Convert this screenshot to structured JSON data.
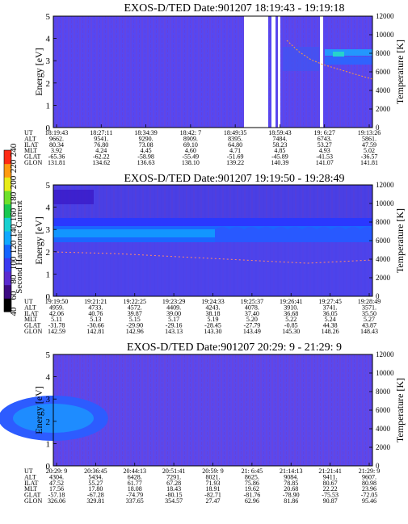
{
  "colorbar": {
    "label": "Second Harmonic Current",
    "ticks": [
      "40",
      "60",
      "80",
      "100",
      "120",
      "140",
      "160",
      "180",
      "200",
      "220",
      "240"
    ],
    "colors": [
      "#000000",
      "#3c0a82",
      "#5a2acf",
      "#3a3af0",
      "#1464ff",
      "#10a8ff",
      "#18d0d0",
      "#19c850",
      "#6ee02a",
      "#e8ec18",
      "#ff9a10",
      "#ff2a14"
    ]
  },
  "panels": [
    {
      "title": "EXOS-D/TED   Date:901207  18:19:43 - 19:19:18",
      "ylabel": "Energy [eV]",
      "y2label": "Temperature [K]",
      "yticks": [
        "0",
        "1",
        "2",
        "3",
        "4",
        "5"
      ],
      "y2ticks": [
        "0",
        "2000",
        "4000",
        "6000",
        "8000",
        "10000",
        "12000"
      ],
      "rowlabels": [
        "UT",
        "ALT",
        "ILAT",
        "MLT",
        "GLAT",
        "GLON"
      ],
      "columns": [
        [
          "18:19:43",
          "9662.",
          "80.34",
          "3.92",
          "-65.36",
          "131.81"
        ],
        [
          "18:27:11",
          "9541.",
          "76.80",
          "4.24",
          "-62.22",
          "134.62"
        ],
        [
          "18:34:39",
          "9290.",
          "73.08",
          "4.45",
          "-58.98",
          "136.63"
        ],
        [
          "18:42: 7",
          "8909.",
          "69.10",
          "4.60",
          "-55.49",
          "138.10"
        ],
        [
          "18:49:35",
          "8395.",
          "64.80",
          "4.71",
          "-51.69",
          "139.22"
        ],
        [
          "18:59:43",
          "7484.",
          "58.23",
          "4.85",
          "-45.89",
          "140.39"
        ],
        [
          "19: 6:27",
          "6743.",
          "53.27",
          "4.93",
          "-41.53",
          "141.07"
        ],
        [
          "19:13:26",
          "5861.",
          "47.59",
          "5.02",
          "-36.57",
          "141.81"
        ]
      ]
    },
    {
      "title": "EXOS-D/TED   Date:901207  19:19:50 - 19:28:49",
      "ylabel": "Energy [eV]",
      "y2label": "Temperature [K]",
      "yticks": [
        "0",
        "1",
        "2",
        "3",
        "4",
        "5"
      ],
      "y2ticks": [
        "0",
        "2000",
        "4000",
        "6000",
        "8000",
        "10000",
        "12000"
      ],
      "rowlabels": [
        "UT",
        "ALT",
        "ILAT",
        "MLT",
        "GLAT",
        "GLON"
      ],
      "columns": [
        [
          "19:19:50",
          "4959.",
          "42.06",
          "5.11",
          "-31.78",
          "142.59"
        ],
        [
          "19:21:21",
          "4733.",
          "40.76",
          "5.13",
          "-30.66",
          "142.81"
        ],
        [
          "19:22:25",
          "4572.",
          "39.87",
          "5.15",
          "-29.90",
          "142.96"
        ],
        [
          "19:23:29",
          "4409.",
          "39.00",
          "5.17",
          "-29.16",
          "143.13"
        ],
        [
          "19:24:33",
          "4243.",
          "38.18",
          "5.19",
          "-28.45",
          "143.30"
        ],
        [
          "19:25:37",
          "4078.",
          "37.40",
          "5.20",
          "-27.79",
          "143.49"
        ],
        [
          "19:26:41",
          "3910.",
          "36.68",
          "5.22",
          "-0.85",
          "145.30"
        ],
        [
          "19:27:45",
          "3741.",
          "36.05",
          "5.24",
          "44.38",
          "148.26"
        ],
        [
          "19:28:49",
          "3571.",
          "35.50",
          "5.27",
          "43.87",
          "148.43"
        ]
      ]
    },
    {
      "title": "EXOS-D/TED   Date:901207  20:29: 9 - 21:29: 9",
      "ylabel": "Energy [eV]",
      "y2label": "Temperature [K]",
      "yticks": [
        "0",
        "1",
        "2",
        "3",
        "4",
        "5"
      ],
      "y2ticks": [
        "0",
        "2000",
        "4000",
        "6000",
        "8000",
        "10000",
        "12000"
      ],
      "rowlabels": [
        "UT",
        "ALT",
        "ILAT",
        "MLT",
        "GLAT",
        "GLON"
      ],
      "columns": [
        [
          "20:29: 9",
          "4304.",
          "47.52",
          "17.56",
          "-57.18",
          "326.06"
        ],
        [
          "20:36:45",
          "5434.",
          "55.27",
          "17.80",
          "-67.28",
          "329.81"
        ],
        [
          "20:44:13",
          "6428.",
          "61.77",
          "18.08",
          "-74.79",
          "337.65"
        ],
        [
          "20:51:41",
          "7291.",
          "67.28",
          "18.43",
          "-80.15",
          "354.57"
        ],
        [
          "20:59: 9",
          "8021.",
          "71.93",
          "18.91",
          "-82.71",
          "27.47"
        ],
        [
          "21: 6:45",
          "8625.",
          "75.86",
          "19.62",
          "-81.76",
          "62.96"
        ],
        [
          "21:14:13",
          "9084.",
          "78.85",
          "20.68",
          "-78.90",
          "81.86"
        ],
        [
          "21:21:41",
          "9411.",
          "80.67",
          "22.22",
          "-75.53",
          "90.87"
        ],
        [
          "21:29: 9",
          "9607.",
          "80.98",
          "23.96",
          "-72.05",
          "95.46"
        ]
      ]
    }
  ],
  "chart_data": [
    {
      "type": "heatmap",
      "title": "EXOS-D/TED   Date:901207  18:19:43 - 19:19:18",
      "ylabel": "Energy [eV]",
      "y2label": "Temperature [K]",
      "ylim": [
        0,
        5
      ],
      "y2lim": [
        0,
        12000
      ],
      "x_ticks": [
        "18:19:43",
        "18:27:11",
        "18:34:39",
        "18:42: 7",
        "18:49:35",
        "18:59:43",
        "19: 6:27",
        "19:13:26"
      ],
      "colorbar_label": "Second Harmonic Current",
      "colorbar_range": [
        40,
        240
      ]
    },
    {
      "type": "heatmap",
      "title": "EXOS-D/TED   Date:901207  19:19:50 - 19:28:49",
      "ylabel": "Energy [eV]",
      "y2label": "Temperature [K]",
      "ylim": [
        0,
        5
      ],
      "y2lim": [
        0,
        12000
      ],
      "x_ticks": [
        "19:19:50",
        "19:21:21",
        "19:22:25",
        "19:23:29",
        "19:24:33",
        "19:25:37",
        "19:26:41",
        "19:27:45",
        "19:28:49"
      ],
      "colorbar_label": "Second Harmonic Current",
      "colorbar_range": [
        40,
        240
      ]
    },
    {
      "type": "heatmap",
      "title": "EXOS-D/TED   Date:901207  20:29: 9 - 21:29: 9",
      "ylabel": "Energy [eV]",
      "y2label": "Temperature [K]",
      "ylim": [
        0,
        5
      ],
      "y2lim": [
        0,
        12000
      ],
      "x_ticks": [
        "20:29: 9",
        "20:36:45",
        "20:44:13",
        "20:51:41",
        "20:59: 9",
        "21: 6:45",
        "21:14:13",
        "21:21:41",
        "21:29: 9"
      ],
      "colorbar_label": "Second Harmonic Current",
      "colorbar_range": [
        40,
        240
      ]
    }
  ]
}
